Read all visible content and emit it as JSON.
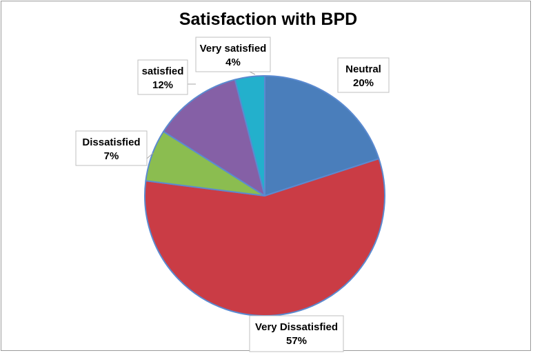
{
  "chart_data": {
    "type": "pie",
    "title": "Satisfaction with BPD",
    "legend": "none",
    "slices": [
      {
        "label": "Neutral",
        "value": 20,
        "percent_label": "20%",
        "color": "#4a7ebb"
      },
      {
        "label": "Very Dissatisfied",
        "value": 57,
        "percent_label": "57%",
        "color": "#ca3c45"
      },
      {
        "label": "Dissatisfied",
        "value": 7,
        "percent_label": "7%",
        "color": "#8bbd50"
      },
      {
        "label": "satisfied",
        "value": 12,
        "percent_label": "12%",
        "color": "#8560a6"
      },
      {
        "label": "Very satisfied",
        "value": 4,
        "percent_label": "4%",
        "color": "#23b0cc"
      }
    ],
    "slice_border_color": "#5b8ad0"
  }
}
